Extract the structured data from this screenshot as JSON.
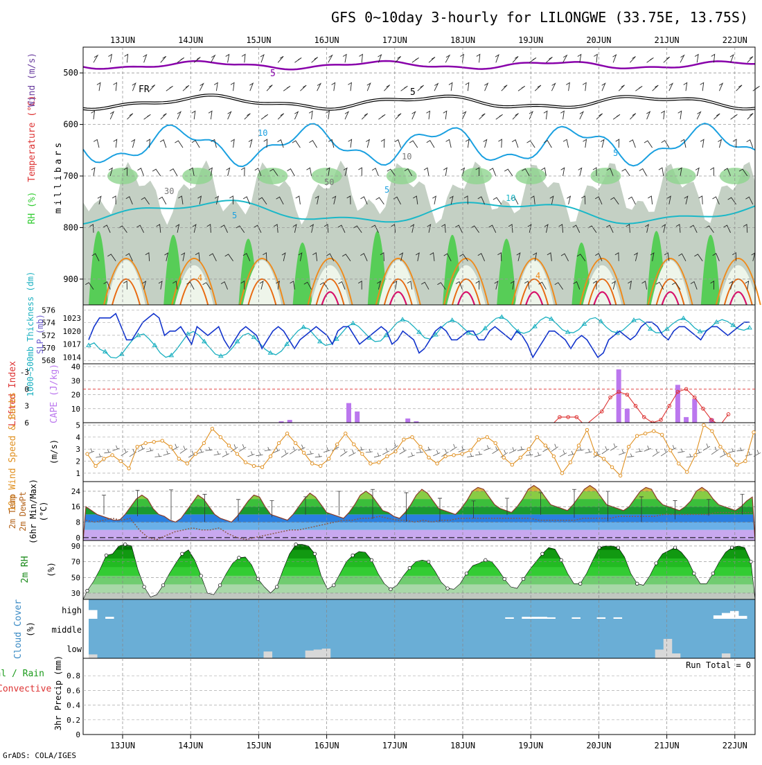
{
  "title": "GFS 0~10day 3-hourly for LILONGWE (33.75E, 13.75S)",
  "footer": "GrADS: COLA/IGES",
  "dates": [
    "13JUN",
    "14JUN",
    "15JUN",
    "16JUN",
    "17JUN",
    "18JUN",
    "19JUN",
    "20JUN",
    "21JUN",
    "22JUN"
  ],
  "colors": {
    "rh_green": "#33cc33",
    "temp_purple": "#8800aa",
    "temp_blue": "#1aa0e0",
    "temp_orange": "#f08a1a",
    "temp_magenta": "#d8106a",
    "slp_blue": "#1133cc",
    "thick_cyan": "#1ab0c0",
    "cape_purple": "#bb77ee",
    "li_red": "#dd3333",
    "wind_orange": "#e09020",
    "cloud_blue": "#6aaed6"
  },
  "chart_data": [
    {
      "id": "upper",
      "type": "heatmap",
      "ylabel": "millibars",
      "title_parts": [
        "RH (%)",
        "Temperature (°C)",
        "Wind (m/s)"
      ],
      "yticks": [
        "500",
        "600",
        "700",
        "800",
        "900"
      ],
      "contour_labels": [
        "5",
        "FR",
        "5",
        "10",
        "5",
        "10",
        "4",
        "5",
        "4",
        "10",
        "30",
        "50",
        "5"
      ],
      "freezing_level_mb": 555
    },
    {
      "id": "slp",
      "type": "line",
      "title_parts": [
        "1000~500mb Thickness (dm)",
        "SLP (mb)"
      ],
      "yticks_left": [
        "568",
        "570",
        "572",
        "574",
        "576"
      ],
      "yticks_right": [
        "1014",
        "1017",
        "1020",
        "1023"
      ],
      "slp_mb": [
        1018,
        1021,
        1023,
        1023,
        1023,
        1024,
        1021,
        1018,
        1018,
        1020,
        1022,
        1023,
        1024,
        1023,
        1019,
        1020,
        1020,
        1021,
        1019,
        1017,
        1021,
        1020,
        1019,
        1020,
        1021,
        1018,
        1016,
        1018,
        1020,
        1021,
        1020,
        1019,
        1016,
        1018,
        1020,
        1021,
        1020,
        1018,
        1016,
        1018,
        1019,
        1020,
        1021,
        1020,
        1019,
        1017,
        1020,
        1021,
        1021,
        1019,
        1017,
        1018,
        1019,
        1020,
        1021,
        1020,
        1017,
        1018,
        1020,
        1019,
        1018,
        1015,
        1016,
        1018,
        1020,
        1021,
        1020,
        1018,
        1018,
        1019,
        1020,
        1020,
        1018,
        1018,
        1020,
        1021,
        1020,
        1019,
        1018,
        1020,
        1019,
        1017,
        1014,
        1016,
        1018,
        1020,
        1020,
        1019,
        1018,
        1016,
        1018,
        1019,
        1018,
        1016,
        1014,
        1015,
        1018,
        1019,
        1020,
        1019,
        1018,
        1019,
        1021,
        1022,
        1022,
        1021,
        1019,
        1018,
        1020,
        1021,
        1021,
        1020,
        1019,
        1018,
        1020,
        1021,
        1021,
        1020,
        1019,
        1020,
        1021,
        1022,
        1022
      ],
      "thickness_dm": [
        570.4,
        570.8,
        569.8,
        569.4,
        568.5,
        568.4,
        569.0,
        570.2,
        571.3,
        572.0,
        572.2,
        571.4,
        570.4,
        569.2,
        568.5,
        568.8,
        569.8,
        571.0,
        572.2,
        572.6,
        572.0,
        571.0,
        570.0,
        569.0,
        568.7,
        569.0,
        569.9,
        571.0,
        572.0,
        572.3,
        571.7,
        570.8,
        569.8,
        569.2,
        568.9,
        569.5,
        570.6,
        571.7,
        572.7,
        573.3,
        573.0,
        572.0,
        571.0,
        570.4,
        570.6,
        571.4,
        572.4,
        573.4,
        573.9,
        573.4,
        572.5,
        571.6,
        571.0,
        571.1,
        572.0,
        573.0,
        574.0,
        574.5,
        574.2,
        573.4,
        572.5,
        571.6,
        571.4,
        572.1,
        573.2,
        574.0,
        574.4,
        574.0,
        573.2,
        572.4,
        572.0,
        572.3,
        573.1,
        574.0,
        574.7,
        574.9,
        574.4,
        573.4,
        572.6,
        572.3,
        572.6,
        573.4,
        574.4,
        574.9,
        574.6,
        573.8,
        572.9,
        572.5,
        572.4,
        572.9,
        573.8,
        574.6,
        574.8,
        574.2,
        573.3,
        572.6,
        572.4,
        572.8,
        573.6,
        574.4,
        574.6,
        574.0,
        573.0,
        572.4,
        572.4,
        573.0,
        573.8,
        574.4,
        574.7,
        574.1,
        573.2,
        572.6,
        572.7,
        573.3,
        574.1,
        574.5,
        574.2,
        573.6,
        573.0,
        572.8,
        573.2
      ]
    },
    {
      "id": "cape_li",
      "type": "bar",
      "title_parts": [
        "Lifted Index",
        "CAPE (J/kg)"
      ],
      "yticks_left": [
        "6",
        "3",
        "0",
        "-3"
      ],
      "yticks_right": [
        "10",
        "20",
        "30",
        "40"
      ],
      "cape_bars": [
        {
          "i": 23,
          "v": 1
        },
        {
          "i": 24,
          "v": 2
        },
        {
          "i": 31,
          "v": 14
        },
        {
          "i": 32,
          "v": 8
        },
        {
          "i": 38,
          "v": 3
        },
        {
          "i": 39,
          "v": 1
        },
        {
          "i": 63,
          "v": 38
        },
        {
          "i": 64,
          "v": 10
        },
        {
          "i": 70,
          "v": 27
        },
        {
          "i": 71,
          "v": 4
        },
        {
          "i": 72,
          "v": 17
        },
        {
          "i": 74,
          "v": 3
        }
      ],
      "li_points": [
        {
          "i": 55,
          "v": 6.5
        },
        {
          "i": 56,
          "v": 5
        },
        {
          "i": 57,
          "v": 5
        },
        {
          "i": 58,
          "v": 5
        },
        {
          "i": 59,
          "v": 6.5
        },
        {
          "i": 61,
          "v": 4
        },
        {
          "i": 62,
          "v": 1.5
        },
        {
          "i": 63,
          "v": 0.5
        },
        {
          "i": 64,
          "v": 1
        },
        {
          "i": 65,
          "v": 3
        },
        {
          "i": 66,
          "v": 5
        },
        {
          "i": 67,
          "v": 6
        },
        {
          "i": 68,
          "v": 5.5
        },
        {
          "i": 69,
          "v": 3
        },
        {
          "i": 70,
          "v": 0.5
        },
        {
          "i": 71,
          "v": 0
        },
        {
          "i": 72,
          "v": 1.5
        },
        {
          "i": 73,
          "v": 3.5
        },
        {
          "i": 74,
          "v": 5.5
        },
        {
          "i": 75,
          "v": 6.5
        },
        {
          "i": 76,
          "v": 4.5
        }
      ]
    },
    {
      "id": "wind10",
      "type": "line",
      "title_parts": [
        "10m Wind Speed & Barbs",
        "(m/s)"
      ],
      "yticks": [
        "1",
        "2",
        "3",
        "4",
        "5"
      ],
      "speed": [
        2.6,
        1.6,
        2.2,
        2.5,
        2.0,
        1.4,
        3.2,
        3.5,
        3.6,
        3.7,
        3.2,
        2.2,
        1.8,
        2.6,
        3.5,
        4.7,
        4.0,
        3.3,
        2.6,
        1.9,
        1.6,
        1.5,
        2.4,
        3.5,
        4.3,
        3.5,
        2.7,
        1.8,
        1.6,
        2.2,
        3.4,
        4.3,
        3.4,
        2.6,
        1.8,
        1.9,
        2.4,
        2.8,
        3.8,
        4.0,
        3.2,
        2.3,
        1.8,
        2.4,
        2.5,
        2.6,
        2.9,
        3.8,
        4.0,
        3.5,
        2.3,
        1.7,
        2.3,
        3.0,
        4.0,
        3.3,
        2.4,
        1.0,
        1.9,
        3.3,
        4.6,
        2.6,
        2.2,
        1.5,
        0.8,
        3.2,
        4.1,
        4.3,
        4.5,
        4.2,
        2.9,
        1.8,
        1.1,
        2.5,
        5.0,
        4.5,
        3.2,
        2.5,
        1.7,
        2.0,
        4.4
      ],
      "barb_level": 2.6
    },
    {
      "id": "temp2m",
      "type": "area",
      "title_parts": [
        "2m Temp",
        "2m DewPt",
        "(6hr Min/Max)",
        "(°C)"
      ],
      "yticks": [
        "0",
        "8",
        "16",
        "24"
      ],
      "temp": [
        16,
        14,
        12,
        11,
        10,
        9,
        9,
        12,
        16,
        20,
        22,
        20,
        15,
        12,
        11,
        9,
        8,
        10,
        14,
        18,
        22,
        20,
        16,
        12,
        10,
        9,
        8,
        11,
        15,
        19,
        22,
        21,
        16,
        12,
        11,
        10,
        9,
        12,
        16,
        20,
        23,
        21,
        17,
        13,
        12,
        11,
        10,
        13,
        17,
        22,
        24,
        22,
        18,
        14,
        13,
        11,
        10,
        13,
        17,
        22,
        25,
        23,
        19,
        15,
        14,
        13,
        12,
        15,
        19,
        24,
        26,
        25,
        21,
        17,
        15,
        14,
        13,
        16,
        20,
        25,
        27,
        25,
        21,
        17,
        16,
        15,
        14,
        17,
        21,
        25,
        27,
        25,
        21,
        17,
        16,
        15,
        14,
        16,
        20,
        24,
        26,
        25,
        20,
        17,
        16,
        15,
        14,
        16,
        19,
        24,
        26,
        24,
        20,
        17,
        16,
        15,
        14,
        16,
        19,
        21
      ],
      "dewpt": [
        9,
        8,
        9,
        10,
        9,
        10,
        4,
        0,
        -1,
        1,
        3,
        4,
        5,
        4,
        4,
        5,
        2,
        0,
        -1,
        0,
        1,
        2,
        3,
        4,
        4,
        5,
        6,
        7,
        8,
        9,
        9,
        10,
        10,
        11,
        10,
        9,
        9,
        8,
        9,
        8,
        9,
        9,
        10,
        10,
        10,
        10,
        10,
        10,
        10,
        10,
        10,
        9,
        9,
        9,
        9,
        9,
        10,
        10,
        10,
        10,
        11,
        11,
        11,
        11,
        11,
        12,
        12,
        12,
        12,
        12,
        12,
        13,
        13,
        13,
        13,
        13
      ]
    },
    {
      "id": "rh2m",
      "type": "area",
      "title_parts": [
        "2m RH",
        "(%)"
      ],
      "yticks": [
        "30",
        "50",
        "70",
        "90"
      ],
      "rh": [
        33,
        45,
        60,
        78,
        80,
        90,
        92,
        90,
        60,
        38,
        25,
        28,
        40,
        55,
        68,
        80,
        85,
        72,
        52,
        30,
        28,
        40,
        55,
        68,
        75,
        76,
        66,
        48,
        38,
        30,
        38,
        60,
        80,
        92,
        92,
        90,
        80,
        52,
        35,
        40,
        55,
        70,
        78,
        83,
        82,
        72,
        55,
        42,
        35,
        40,
        52,
        62,
        70,
        72,
        70,
        58,
        44,
        36,
        35,
        42,
        55,
        65,
        68,
        72,
        70,
        60,
        48,
        38,
        36,
        48,
        60,
        70,
        80,
        88,
        86,
        72,
        55,
        42,
        42,
        55,
        72,
        88,
        90,
        90,
        88,
        76,
        55,
        42,
        40,
        52,
        68,
        80,
        84,
        88,
        82,
        72,
        55,
        42,
        42,
        55,
        70,
        82,
        88,
        90,
        88,
        70
      ]
    },
    {
      "id": "cloud",
      "type": "bar",
      "title_parts": [
        "Cloud Cover",
        "(%)"
      ],
      "ylabels": [
        "high",
        "middle",
        "low"
      ],
      "high_blocks": [
        {
          "i": 0,
          "h": 0.9
        },
        {
          "i": 2,
          "h": 0.2
        },
        {
          "i": 50,
          "h": 0.15
        },
        {
          "i": 52,
          "h": 0.2
        },
        {
          "i": 53,
          "h": 0.2
        },
        {
          "i": 54,
          "h": 0.2
        },
        {
          "i": 55,
          "h": 0.15
        },
        {
          "i": 58,
          "h": 0.15
        },
        {
          "i": 61,
          "h": 0.15
        },
        {
          "i": 63,
          "h": 0.15
        },
        {
          "i": 75,
          "h": 0.35
        },
        {
          "i": 76,
          "h": 0.6
        },
        {
          "i": 77,
          "h": 0.8
        },
        {
          "i": 78,
          "h": 0.3
        }
      ],
      "low_blocks": [
        {
          "i": 0,
          "h": 0.2
        },
        {
          "i": 21,
          "h": 0.35
        },
        {
          "i": 26,
          "h": 0.4
        },
        {
          "i": 27,
          "h": 0.45
        },
        {
          "i": 28,
          "h": 0.5
        },
        {
          "i": 68,
          "h": 0.45
        },
        {
          "i": 69,
          "h": 1.0
        },
        {
          "i": 70,
          "h": 0.25
        },
        {
          "i": 76,
          "h": 0.25
        }
      ]
    },
    {
      "id": "precip",
      "type": "bar",
      "title_parts": [
        "Total / Rain",
        "Convective",
        "3hr Precip (mm)"
      ],
      "yticks": [
        "0",
        "0.2",
        "0.4",
        "0.6",
        "0.8"
      ],
      "run_total": "Run Total = 0",
      "values": []
    }
  ]
}
